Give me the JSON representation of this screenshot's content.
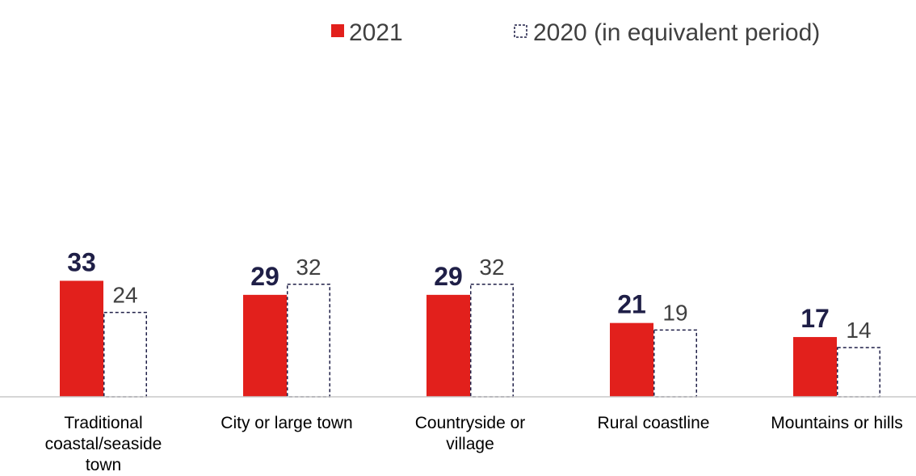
{
  "chart_data": {
    "type": "bar",
    "categories": [
      [
        "Traditional",
        "coastal/seaside",
        "town"
      ],
      [
        "City or large town"
      ],
      [
        "Countryside or",
        "village"
      ],
      [
        "Rural coastline"
      ],
      [
        "Mountains or hills"
      ]
    ],
    "series": [
      {
        "name": "2021",
        "values": [
          33,
          29,
          29,
          21,
          17
        ],
        "color": "#e2201c",
        "style": "solid"
      },
      {
        "name": "2020 (in equivalent period)",
        "values": [
          24,
          32,
          32,
          19,
          14
        ],
        "color": "#1f1f47",
        "style": "dashed-outline"
      }
    ],
    "title": "",
    "xlabel": "",
    "ylabel": "",
    "ylim": [
      0,
      120
    ],
    "grid": false,
    "legend_position": "top-right",
    "data_labels": true
  }
}
